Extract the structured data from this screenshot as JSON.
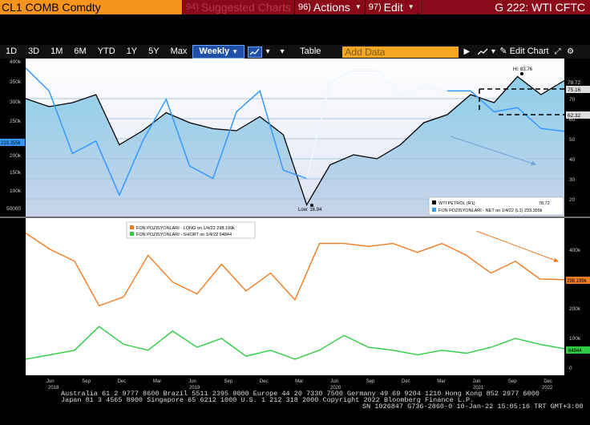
{
  "header": {
    "ticker": "CL1 COMB Comdty",
    "suggested_num": "94)",
    "suggested_label": "Suggested Charts",
    "actions_num": "96)",
    "actions_label": "Actions",
    "edit_num": "97)",
    "edit_label": "Edit",
    "function_title": "G 222: WTI CFTC"
  },
  "toolbar": {
    "periods": [
      "1D",
      "3D",
      "1M",
      "6M",
      "YTD",
      "1Y",
      "5Y",
      "Max"
    ],
    "frequency": "Weekly",
    "table_label": "Table",
    "add_data_placeholder": "Add Data",
    "edit_chart_label": "Edit Chart"
  },
  "chart_data": [
    {
      "type": "line",
      "panel": "top",
      "left_axis_ticks": [
        "400k",
        "350k",
        "300k",
        "250k",
        "200k",
        "150k",
        "100k",
        "50000"
      ],
      "right_axis_ticks": [
        "70",
        "60",
        "50",
        "40",
        "30",
        "20"
      ],
      "right_axis_labels": [
        "78.72",
        "75.16",
        "62.32"
      ],
      "left_axis_label": "233.355k",
      "x": [
        "2018-05",
        "2018-06",
        "2018-08",
        "2018-10",
        "2018-12",
        "2019-02",
        "2019-04",
        "2019-06",
        "2019-08",
        "2019-10",
        "2019-12",
        "2020-02",
        "2020-04",
        "2020-06",
        "2020-08",
        "2020-10",
        "2020-12",
        "2021-02",
        "2021-04",
        "2021-06",
        "2021-08",
        "2021-10",
        "2021-12",
        "2022-01"
      ],
      "series": [
        {
          "name": "WTI PETROL (R1)",
          "color": "#ffffff",
          "fill": "#7fb9d9",
          "values": [
            70,
            66,
            68,
            72,
            47,
            54,
            63,
            58,
            55,
            54,
            61,
            52,
            17,
            37,
            42,
            40,
            47,
            58,
            62,
            72,
            68,
            81,
            72,
            79
          ]
        },
        {
          "name": "FON POZISYONLARI - NET on 1/4/22 (L1) 233.355k",
          "color": "#3399ff",
          "values": [
            385,
            330,
            180,
            210,
            80,
            210,
            310,
            150,
            120,
            280,
            330,
            140,
            120,
            350,
            380,
            380,
            320,
            340,
            330,
            330,
            280,
            290,
            240,
            233
          ]
        }
      ],
      "annotations": [
        "Hi: 83.76",
        "Low: 16.94"
      ],
      "legend": [
        "WTI PETROL (R1)",
        "78.72",
        "FON POZISYONLARI - NET on 1/4/22 (L1) 233.355k"
      ]
    },
    {
      "type": "line",
      "panel": "bottom",
      "right_axis_ticks": [
        "400k",
        "300k",
        "200k",
        "100k",
        "0"
      ],
      "right_axis_labels": [
        "298.199k",
        "64844"
      ],
      "x_ticks": [
        "Jun",
        "Sep",
        "Dec",
        "Mar",
        "Jun",
        "Sep",
        "Dec",
        "Mar",
        "Jun",
        "Sep",
        "Dec",
        "Mar",
        "Jun",
        "Sep",
        "Dec"
      ],
      "years": [
        "2018",
        "2019",
        "2020",
        "2021",
        "2022"
      ],
      "series": [
        {
          "name": "FON POZISYONLARI - LONG on 1/4/22  298.199k",
          "color": "#f47b20",
          "values": [
            455,
            400,
            360,
            210,
            240,
            380,
            290,
            250,
            350,
            260,
            320,
            230,
            420,
            420,
            410,
            420,
            390,
            420,
            380,
            320,
            360,
            300,
            298
          ]
        },
        {
          "name": "FON POZISYONLARI - SHORT on 1/4/22  64844",
          "color": "#2ecc40",
          "values": [
            30,
            45,
            60,
            140,
            80,
            60,
            125,
            70,
            100,
            40,
            60,
            30,
            60,
            110,
            70,
            60,
            45,
            60,
            50,
            70,
            100,
            80,
            65
          ]
        }
      ],
      "legend": [
        "FON POZISYONLARI - LONG on 1/4/22  298.199k",
        "FON POZISYONLARI - SHORT on 1/4/22  64844"
      ]
    }
  ],
  "footer": {
    "line1": "Australia 61 2 9777 8600 Brazil 5511 2395 9000 Europe 44 20 7330 7500 Germany 49 69 9204 1210 Hong Kong 852 2977 6000",
    "line2": "Japan 81 3 4565 8900        Singapore 65 6212 1000        U.S. 1 212 318 2000           Copyright 2022 Bloomberg Finance L.P.",
    "line3": "SN 1026847 G736-2860-0 10-Jan-22 15:05:16 TRT  GMT+3:00"
  }
}
